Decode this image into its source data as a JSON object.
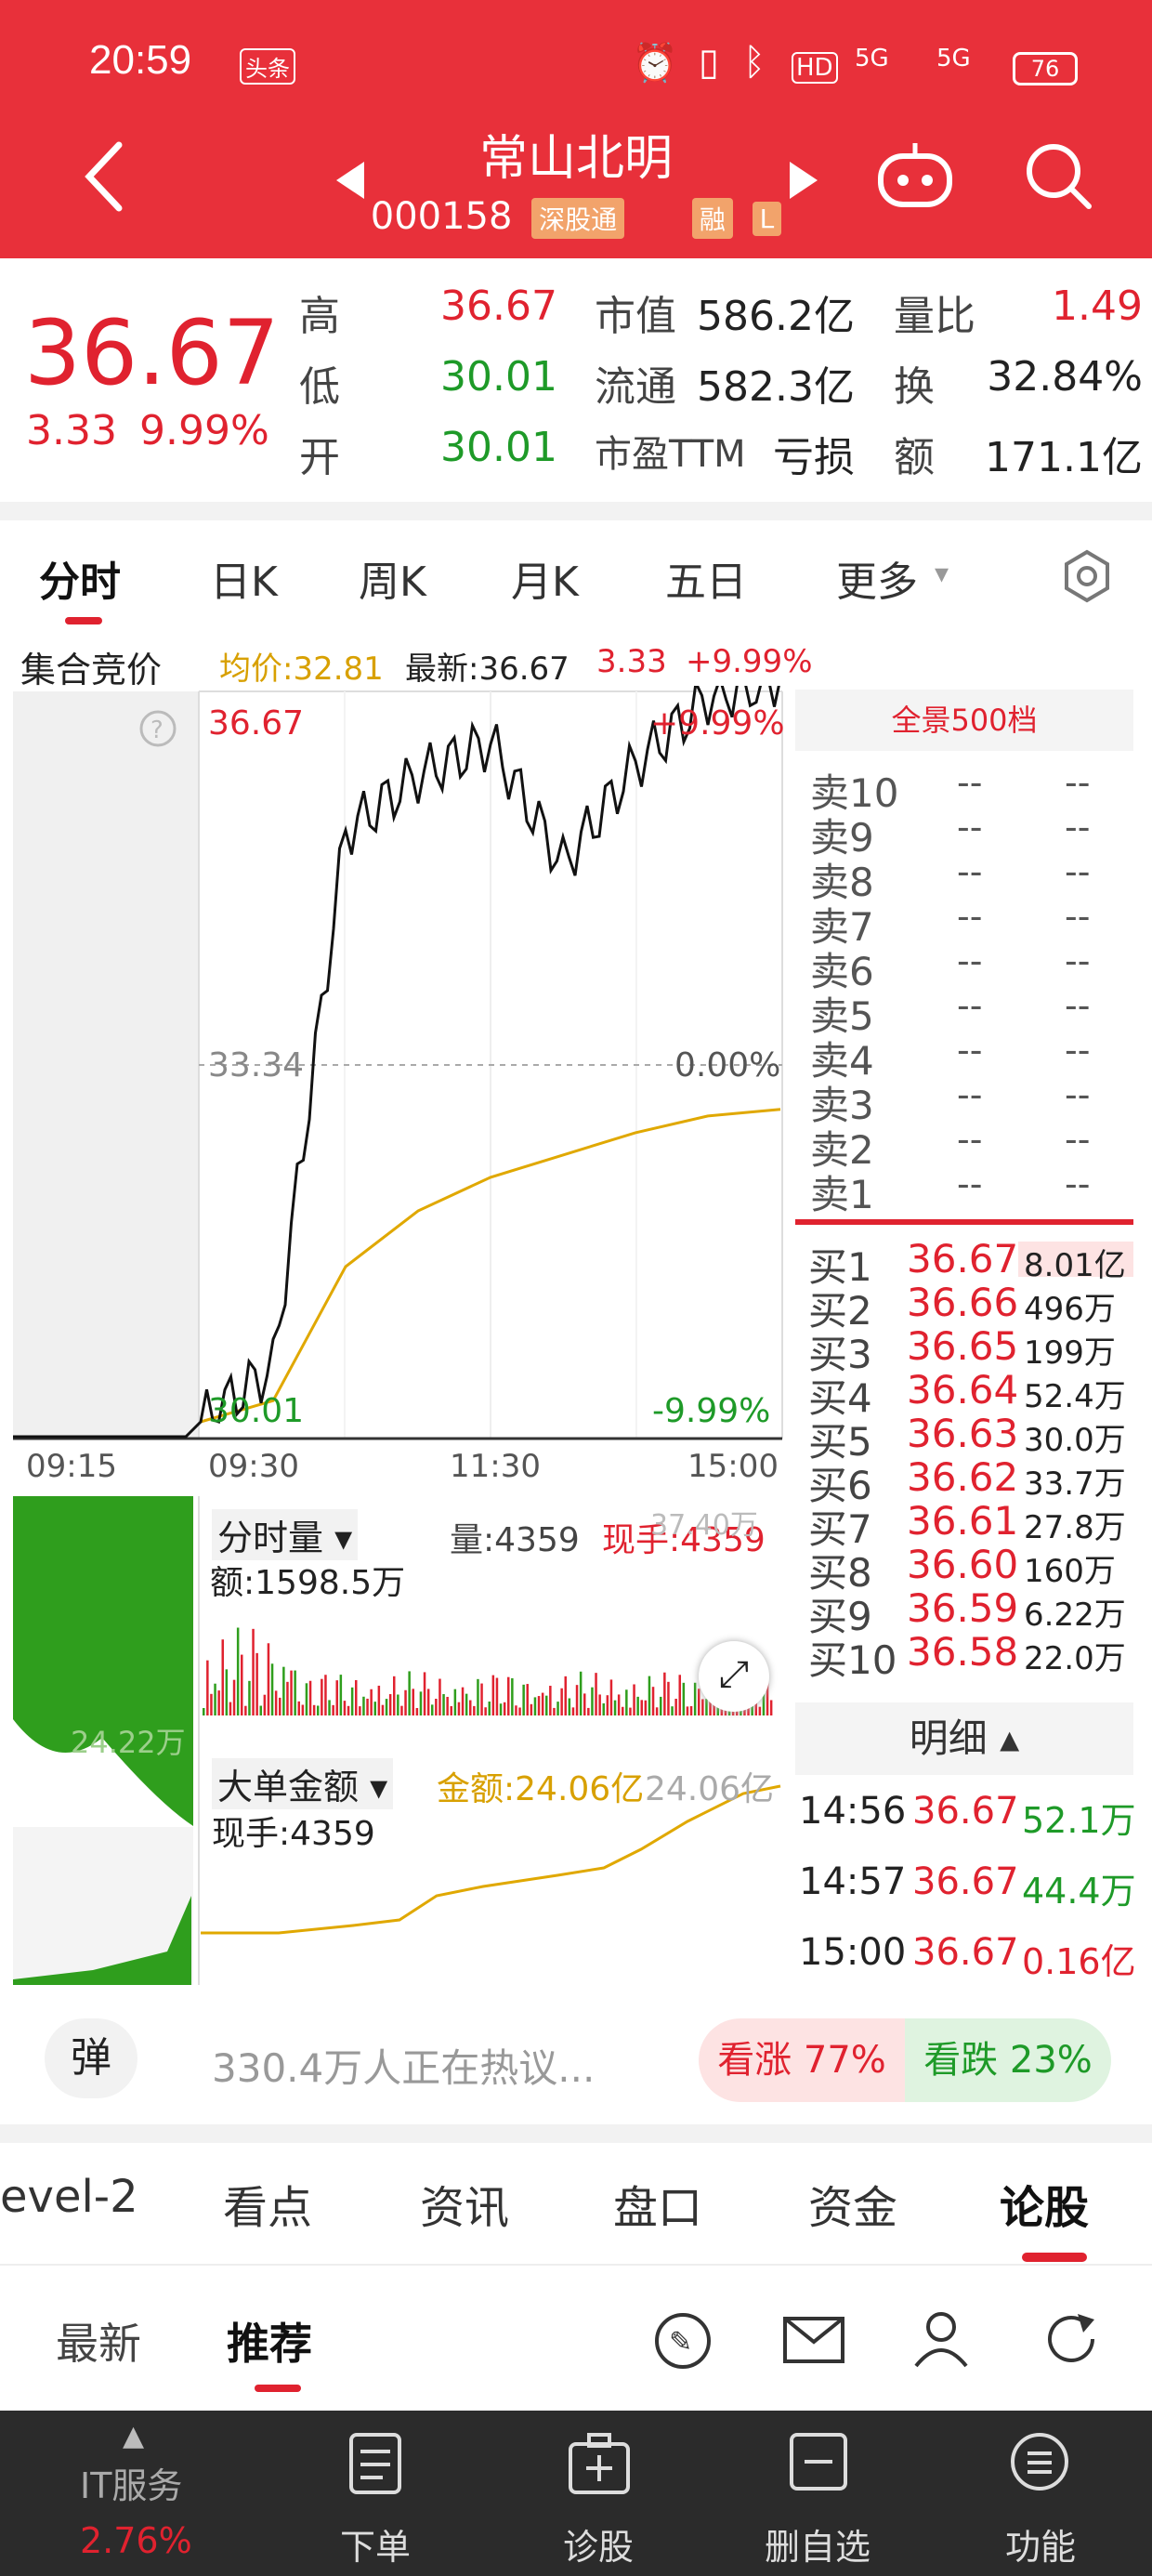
{
  "status_bar": {
    "time": "20:59",
    "badge": "头条",
    "battery": "76",
    "net1": "5G",
    "net2": "5G",
    "hd": "HD"
  },
  "header": {
    "title": "常山北明",
    "code": "000158",
    "tag1": "深股通",
    "tag2": "融",
    "tag3": "L"
  },
  "quote": {
    "price": "36.67",
    "change": "3.33",
    "pct": "9.99%",
    "rows": [
      {
        "l1": "高",
        "v1": "36.67",
        "l2": "市值",
        "v2": "586.2亿",
        "l3": "量比",
        "v3": "1.49"
      },
      {
        "l1": "低",
        "v1": "30.01",
        "l2": "流通",
        "v2": "582.3亿",
        "l3": "换",
        "v3": "32.84%"
      },
      {
        "l1": "开",
        "v1": "30.01",
        "l2": "市盈TTM",
        "v2": "亏损",
        "l3": "额",
        "v3": "171.1亿"
      }
    ]
  },
  "chart_tabs": [
    "分时",
    "日K",
    "周K",
    "月K",
    "五日",
    "更多"
  ],
  "chart_info": {
    "auction": "集合竞价",
    "avg": "均价:32.81",
    "latest": "最新:36.67",
    "chg": "3.33",
    "pct": "+9.99%"
  },
  "chart_labels": {
    "top": "36.67",
    "top_pct": "+9.99%",
    "mid": "33.34",
    "mid_pct": "0.00%",
    "bot": "30.01",
    "bot_pct": "-9.99%",
    "t1": "09:15",
    "t2": "09:30",
    "t3": "11:30",
    "t4": "15:00"
  },
  "chart_data": {
    "type": "line",
    "x": [
      "09:30",
      "10:00",
      "10:30",
      "11:00",
      "11:30",
      "13:30",
      "14:00",
      "14:30",
      "15:00"
    ],
    "series": [
      {
        "name": "",
        "values": [
          30.01,
          30.5,
          35.3,
          35.8,
          36.1,
          35.0,
          35.9,
          36.5,
          36.67
        ]
      },
      {
        "name": "均价",
        "values": [
          30.01,
          30.2,
          31.4,
          31.9,
          32.2,
          32.4,
          32.6,
          32.75,
          32.81
        ]
      }
    ],
    "ylim": [
      30.01,
      36.67
    ]
  },
  "volume": {
    "label": "分时量",
    "qty": "量:4359",
    "now": "现手:4359",
    "amt": "额:1598.5万",
    "max": "37.40万",
    "left_val": "24.22万"
  },
  "bigorder": {
    "label": "大单金额",
    "amount": "金额:24.06亿",
    "now": "现手:4359",
    "max": "24.06亿"
  },
  "orderbook": {
    "title": "全景500档",
    "sells": [
      "卖10",
      "卖9",
      "卖8",
      "卖7",
      "卖6",
      "卖5",
      "卖4",
      "卖3",
      "卖2",
      "卖1"
    ],
    "dash": "--",
    "buys": [
      {
        "l": "买1",
        "p": "36.67",
        "v": "8.01亿"
      },
      {
        "l": "买2",
        "p": "36.66",
        "v": "496万"
      },
      {
        "l": "买3",
        "p": "36.65",
        "v": "199万"
      },
      {
        "l": "买4",
        "p": "36.64",
        "v": "52.4万"
      },
      {
        "l": "买5",
        "p": "36.63",
        "v": "30.0万"
      },
      {
        "l": "买6",
        "p": "36.62",
        "v": "33.7万"
      },
      {
        "l": "买7",
        "p": "36.61",
        "v": "27.8万"
      },
      {
        "l": "买8",
        "p": "36.60",
        "v": "160万"
      },
      {
        "l": "买9",
        "p": "36.59",
        "v": "6.22万"
      },
      {
        "l": "买10",
        "p": "36.58",
        "v": "22.0万"
      }
    ],
    "detail": "明细",
    "trades": [
      {
        "t": "14:56",
        "p": "36.67",
        "v": "52.1万"
      },
      {
        "t": "14:57",
        "p": "36.67",
        "v": "44.4万"
      },
      {
        "t": "15:00",
        "p": "36.67",
        "v": "0.16亿"
      }
    ]
  },
  "discuss": {
    "btn": "弹",
    "text": "330.4万人正在热议...",
    "up": "看涨 77%",
    "down": "看跌 23%"
  },
  "sections": [
    "evel-2",
    "看点",
    "资讯",
    "盘口",
    "资金",
    "论股"
  ],
  "subtabs": [
    "最新",
    "推荐"
  ],
  "bottom": {
    "ticker": "IT服务",
    "ticker_pct": "2.76%",
    "items": [
      "下单",
      "诊股",
      "删自选",
      "功能"
    ]
  }
}
